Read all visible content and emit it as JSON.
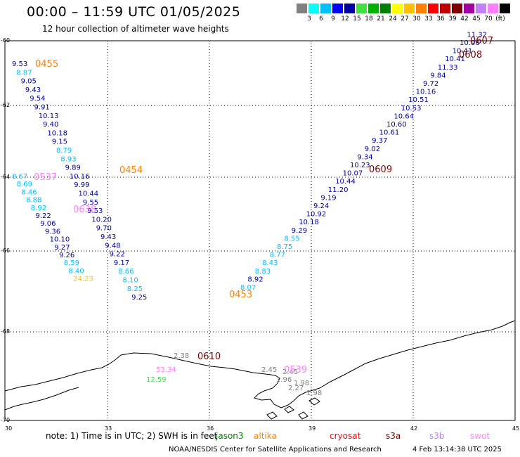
{
  "header": {
    "title": "00:00 – 11:59 UTC 01/05/2025",
    "subtitle": "12 hour collection of altimeter wave heights"
  },
  "colorbar": {
    "swatches": [
      "#808080",
      "#00ffff",
      "#00c0ff",
      "#0000ff",
      "#0000a0",
      "#40e040",
      "#00b000",
      "#008000",
      "#ffff00",
      "#ffc000",
      "#ff8000",
      "#ff0000",
      "#c00000",
      "#800000",
      "#a000a0",
      "#c080ff",
      "#ff80ff",
      "#000000"
    ],
    "labels": [
      "3",
      "6",
      "9",
      "12",
      "15",
      "18",
      "21",
      "24",
      "27",
      "30",
      "33",
      "36",
      "39",
      "42",
      "45",
      "70",
      "(ft)"
    ]
  },
  "axes": {
    "y_ticks": [
      "-60",
      "-62",
      "-64",
      "-66",
      "-68",
      "-70"
    ],
    "x_ticks": [
      "30",
      "33",
      "36",
      "39",
      "42",
      "45"
    ]
  },
  "tracks": [
    {
      "values": [
        "9.53",
        "8.87",
        "9.05",
        "9.43",
        "9.54",
        "9.91",
        "10.13",
        "9.40",
        "10.18",
        "9.15",
        "8.79",
        "8.93",
        "9.89",
        "10.16",
        "9.99",
        "10.44",
        "9.55",
        "9.53",
        "10.20",
        "9.70",
        "9.43",
        "9.48",
        "9.22",
        "9.17",
        "8.66",
        "8.10",
        "8.25",
        "9.25"
      ],
      "colors": [
        "#0000a0",
        "#00c0ff",
        "#0000a0",
        "#0000a0",
        "#0000a0",
        "#0000a0",
        "#0000a0",
        "#0000a0",
        "#0000a0",
        "#0000a0",
        "#00c0ff",
        "#00c0ff",
        "#0000a0",
        "#0000a0",
        "#0000a0",
        "#0000a0",
        "#0000a0",
        "#0000a0",
        "#0000a0",
        "#0000a0",
        "#0000a0",
        "#0000a0",
        "#0000a0",
        "#0000a0",
        "#00c0ff",
        "#00c0ff",
        "#00c0ff",
        "#0000a0"
      ]
    },
    {
      "values": [
        "8.67",
        "8.69",
        "8.46",
        "8.88",
        "8.92",
        "9.22",
        "9.06",
        "9.36",
        "10.10",
        "9.27",
        "9.26",
        "8.59",
        "8.40",
        "24.23"
      ],
      "colors": [
        "#00c0ff",
        "#00c0ff",
        "#00c0ff",
        "#00c0ff",
        "#00c0ff",
        "#0000a0",
        "#0000a0",
        "#0000a0",
        "#0000a0",
        "#0000a0",
        "#0000a0",
        "#00c0ff",
        "#00c0ff",
        "#ffc000"
      ]
    },
    {
      "values": [
        "8.07",
        "8.92",
        "8.83",
        "8.43",
        "8.77",
        "8.75",
        "8.55",
        "9.29",
        "10.18",
        "10.92",
        "9.24",
        "9.19",
        "11.20",
        "10.44",
        "10.07",
        "10.23",
        "9.34",
        "9.02",
        "9.37",
        "10.61",
        "10.60",
        "10.64",
        "10.53",
        "10.51",
        "10.16",
        "9.72",
        "9.84",
        "11.33",
        "10.41",
        "10.41",
        "10.06",
        "11.32"
      ],
      "colors": [
        "#00c0ff",
        "#0000a0",
        "#00c0ff",
        "#00c0ff",
        "#00c0ff",
        "#00c0ff",
        "#00c0ff",
        "#0000a0",
        "#0000a0",
        "#0000a0",
        "#0000a0",
        "#0000a0",
        "#0000a0",
        "#0000a0",
        "#0000a0",
        "#0000a0",
        "#0000a0",
        "#0000a0",
        "#0000a0",
        "#0000a0",
        "#0000a0",
        "#0000a0",
        "#0000a0",
        "#0000a0",
        "#0000a0",
        "#0000a0",
        "#0000a0",
        "#0000a0",
        "#0000a0",
        "#0000a0",
        "#0000a0",
        "#0000a0"
      ]
    },
    {
      "values": [
        "2.38",
        "53.34",
        "12.59",
        "2.45",
        "2.45",
        "1.96",
        "1.98",
        "2.27",
        "1.98"
      ],
      "colors": [
        "#808080",
        "#ff80ff",
        "#40e040",
        "#808080",
        "#808080",
        "#808080",
        "#808080",
        "#808080",
        "#808080"
      ]
    }
  ],
  "pass_labels": [
    {
      "text": "0455",
      "color": "#ff8000"
    },
    {
      "text": "0454",
      "color": "#ff8000"
    },
    {
      "text": "0453",
      "color": "#ff8000"
    },
    {
      "text": "0537",
      "color": "#ff80ff"
    },
    {
      "text": "0638",
      "color": "#ff80ff"
    },
    {
      "text": "0539",
      "color": "#ff80ff"
    },
    {
      "text": "0607",
      "color": "#800000"
    },
    {
      "text": "0608",
      "color": "#800000"
    },
    {
      "text": "0609",
      "color": "#800000"
    },
    {
      "text": "0610",
      "color": "#800000"
    }
  ],
  "footer": {
    "note": "note: 1) Time is in UTC; 2) SWH is in feet",
    "satellites": [
      {
        "name": "jason3",
        "color": "#008000"
      },
      {
        "name": "altika",
        "color": "#ff8000"
      },
      {
        "name": "cryosat",
        "color": "#ff0000"
      },
      {
        "name": "s3a",
        "color": "#800000"
      },
      {
        "name": "s3b",
        "color": "#c080ff"
      },
      {
        "name": "swot",
        "color": "#ff80ff"
      }
    ],
    "credit": "NOAA/NESDIS Center for Satellite Applications and Research",
    "timestamp": "4 Feb 13:14:38 UTC 2025"
  }
}
